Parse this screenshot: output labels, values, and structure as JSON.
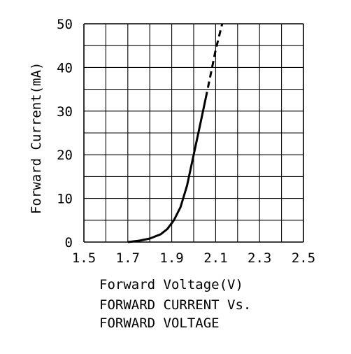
{
  "chart_data": {
    "type": "line",
    "title": "",
    "xlabel": "Forward Voltage(V)",
    "ylabel": "Forward Current(mA)",
    "xlim": [
      1.5,
      2.5
    ],
    "ylim": [
      0,
      50
    ],
    "x_ticks": [
      "1.5",
      "1.7",
      "1.9",
      "2.1",
      "2.3",
      "2.5"
    ],
    "y_ticks": [
      "0",
      "10",
      "20",
      "30",
      "40",
      "50"
    ],
    "grid": true,
    "series": [
      {
        "style": "solid",
        "color": "#000000",
        "points": [
          [
            1.7,
            0.0
          ],
          [
            1.75,
            0.3
          ],
          [
            1.8,
            0.8
          ],
          [
            1.85,
            1.8
          ],
          [
            1.88,
            3.0
          ],
          [
            1.91,
            5.0
          ],
          [
            1.94,
            8.0
          ],
          [
            1.97,
            13.0
          ],
          [
            2.0,
            20.0
          ],
          [
            2.03,
            27.0
          ],
          [
            2.055,
            33.0
          ]
        ]
      },
      {
        "style": "dashed",
        "color": "#000000",
        "points": [
          [
            2.055,
            33.0
          ],
          [
            2.08,
            39.0
          ],
          [
            2.1,
            44.0
          ],
          [
            2.13,
            50.0
          ]
        ]
      }
    ]
  },
  "caption": {
    "line1": "FORWARD CURRENT Vs.",
    "line2": "FORWARD VOLTAGE"
  }
}
